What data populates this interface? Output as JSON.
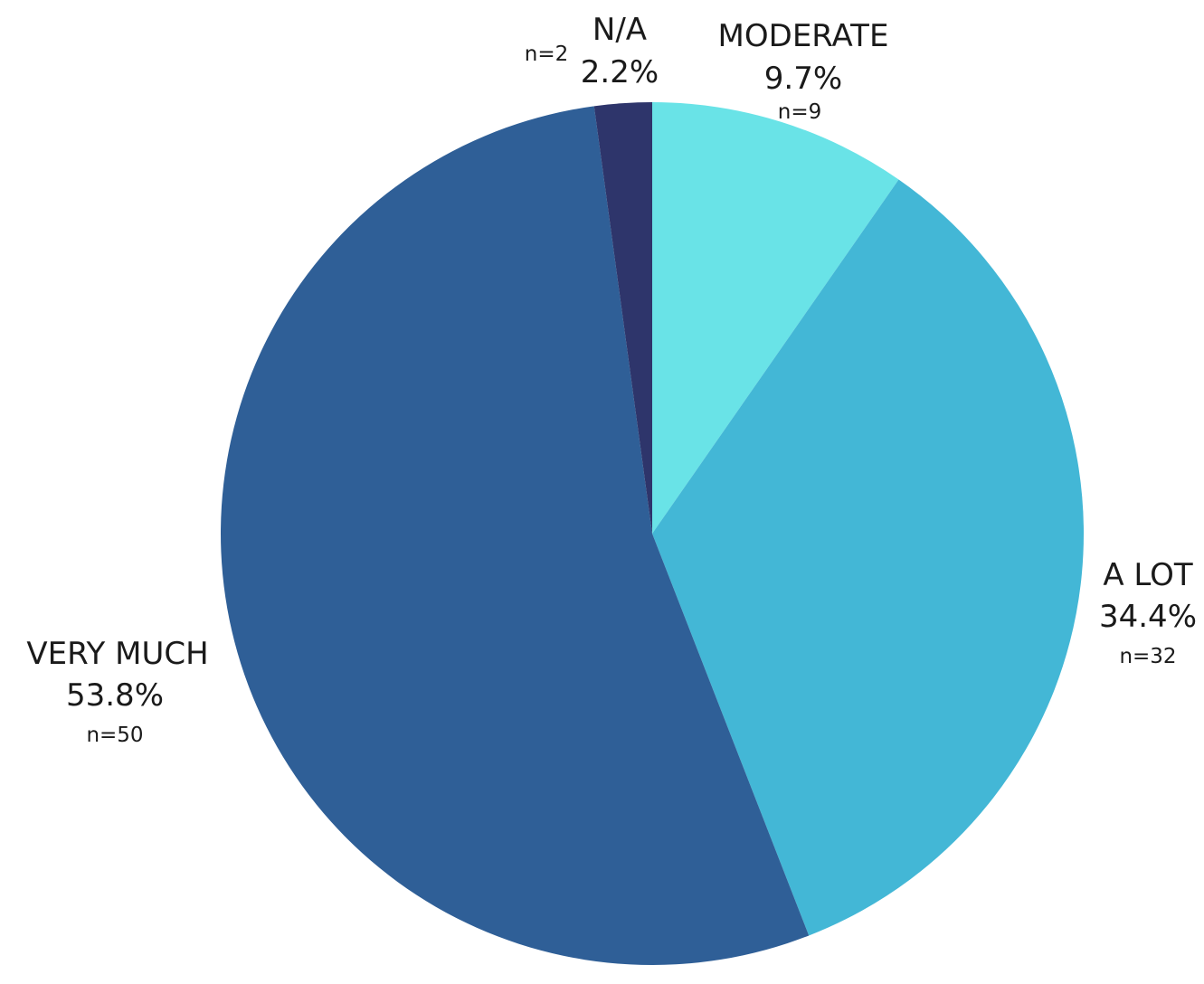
{
  "chart_data": {
    "type": "pie",
    "slices": [
      {
        "label": "MODERATE",
        "percent_text": "9.7%",
        "n_text": "n=9",
        "value": 9,
        "color": "#69e3e7"
      },
      {
        "label": "A LOT",
        "percent_text": "34.4%",
        "n_text": "n=32",
        "value": 32,
        "color": "#43b7d6"
      },
      {
        "label": "VERY MUCH",
        "percent_text": "53.8%",
        "n_text": "n=50",
        "value": 50,
        "color": "#2f5f97"
      },
      {
        "label": "N/A",
        "percent_text": "2.2%",
        "n_text": "n=2",
        "value": 2,
        "color": "#2e356b"
      }
    ],
    "start_angle": "12 o'clock",
    "direction": "clockwise"
  }
}
